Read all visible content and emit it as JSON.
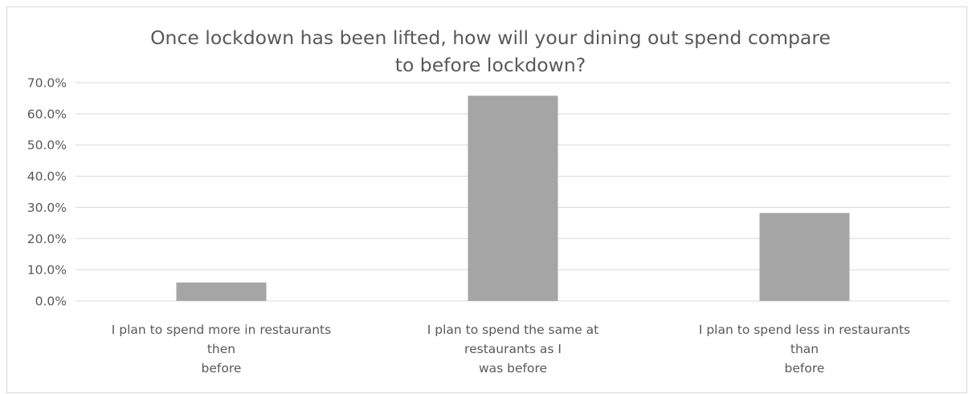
{
  "chart_data": {
    "type": "bar",
    "title": [
      "Once lockdown has been lifted, how will your dining out spend compare",
      "to before lockdown?"
    ],
    "categories": [
      [
        "I plan to spend more in restaurants",
        "then",
        "before"
      ],
      [
        "I plan to spend the same at",
        "restaurants as I",
        "was before"
      ],
      [
        "I plan to spend less in restaurants",
        "than",
        "before"
      ]
    ],
    "values": [
      0.059,
      0.658,
      0.282
    ],
    "ylim": [
      0,
      0.7
    ],
    "yticks": [
      "0.0%",
      "10.0%",
      "20.0%",
      "30.0%",
      "40.0%",
      "50.0%",
      "60.0%",
      "70.0%"
    ],
    "grid": true,
    "bar_color": "#a5a5a5",
    "grid_color": "#d9d9d9"
  }
}
